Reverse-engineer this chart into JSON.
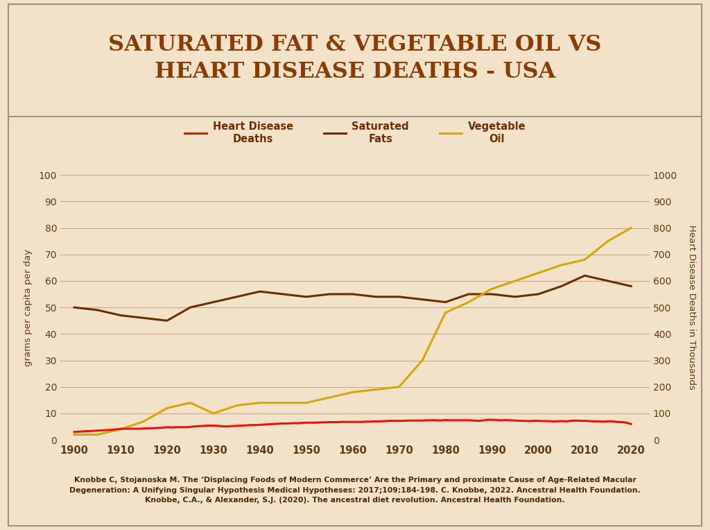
{
  "title_line1": "SATURATED FAT & VEGETABLE OIL VS",
  "title_line2": "HEART DISEASE DEATHS - USA",
  "title_color": "#8B3A00",
  "bg_color_top": "#C4AE8E",
  "bg_color_plot": "#F2E2CA",
  "border_color": "#A09080",
  "left_ylabel": "grams per capita per day",
  "right_ylabel": "Heart Disease Deaths in Thousands",
  "citation": "Knobbe C, Stojanoska M. The ‘Displacing Foods of Modern Commerce’ Are the Primary and proximate Cause of Age-Related Macular\nDegeneration: A Unifying Singular Hypothesis Medical Hypotheses: 2017;109:184-198. C. Knobbe, 2022. Ancestral Health Foundation.\nKnobbe, C.A., & Alexander, S.J. (2020). The ancestral diet revolution. Ancestral Health Foundation.",
  "heart_disease_color": "#E8140A",
  "sat_fat_color": "#6B2E00",
  "veg_oil_color": "#D4A800",
  "years_heart": [
    1900,
    1901,
    1902,
    1903,
    1904,
    1905,
    1906,
    1907,
    1908,
    1909,
    1910,
    1911,
    1912,
    1913,
    1914,
    1915,
    1916,
    1917,
    1918,
    1919,
    1920,
    1921,
    1922,
    1923,
    1924,
    1925,
    1926,
    1927,
    1928,
    1929,
    1930,
    1931,
    1932,
    1933,
    1934,
    1935,
    1936,
    1937,
    1938,
    1939,
    1940,
    1941,
    1942,
    1943,
    1944,
    1945,
    1946,
    1947,
    1948,
    1949,
    1950,
    1951,
    1952,
    1953,
    1954,
    1955,
    1956,
    1957,
    1958,
    1959,
    1960,
    1961,
    1962,
    1963,
    1964,
    1965,
    1966,
    1967,
    1968,
    1969,
    1970,
    1971,
    1972,
    1973,
    1974,
    1975,
    1976,
    1977,
    1978,
    1979,
    1980,
    1981,
    1982,
    1983,
    1984,
    1985,
    1986,
    1987,
    1988,
    1989,
    1990,
    1991,
    1992,
    1993,
    1994,
    1995,
    1996,
    1997,
    1998,
    1999,
    2000,
    2001,
    2002,
    2003,
    2004,
    2005,
    2006,
    2007,
    2008,
    2009,
    2010,
    2011,
    2012,
    2013,
    2014,
    2015,
    2016,
    2017,
    2018,
    2019,
    2020
  ],
  "heart_disease": [
    30,
    31,
    32,
    33,
    34,
    35,
    36,
    37,
    38,
    40,
    42,
    42,
    42,
    42,
    42,
    43,
    44,
    44,
    45,
    46,
    48,
    47,
    48,
    48,
    48,
    49,
    51,
    52,
    53,
    54,
    54,
    53,
    51,
    51,
    52,
    53,
    54,
    55,
    56,
    56,
    57,
    58,
    59,
    60,
    61,
    62,
    62,
    63,
    63,
    64,
    65,
    65,
    65,
    66,
    66,
    67,
    67,
    67,
    68,
    68,
    68,
    68,
    68,
    69,
    69,
    70,
    70,
    71,
    72,
    72,
    72,
    72,
    73,
    73,
    73,
    73,
    74,
    74,
    74,
    73,
    75,
    74,
    74,
    74,
    74,
    74,
    73,
    72,
    73,
    76,
    76,
    75,
    74,
    75,
    74,
    73,
    72,
    72,
    71,
    72,
    72,
    71,
    71,
    70,
    70,
    71,
    70,
    72,
    73,
    72,
    72,
    71,
    70,
    70,
    69,
    70,
    70,
    68,
    67,
    65,
    60
  ],
  "years_sat_fat": [
    1900,
    1905,
    1910,
    1915,
    1920,
    1925,
    1930,
    1935,
    1940,
    1945,
    1950,
    1955,
    1960,
    1965,
    1970,
    1975,
    1980,
    1985,
    1990,
    1995,
    2000,
    2005,
    2010,
    2015,
    2020
  ],
  "sat_fat": [
    50,
    49,
    47,
    46,
    45,
    50,
    52,
    54,
    56,
    55,
    54,
    55,
    55,
    54,
    54,
    53,
    52,
    55,
    55,
    54,
    55,
    58,
    62,
    60,
    58
  ],
  "years_veg_oil": [
    1900,
    1905,
    1910,
    1915,
    1920,
    1925,
    1930,
    1935,
    1940,
    1945,
    1950,
    1955,
    1960,
    1965,
    1970,
    1975,
    1980,
    1985,
    1990,
    1995,
    2000,
    2005,
    2010,
    2015,
    2020
  ],
  "veg_oil": [
    2,
    2,
    4,
    7,
    12,
    14,
    10,
    13,
    14,
    14,
    14,
    16,
    18,
    19,
    20,
    30,
    48,
    52,
    57,
    60,
    63,
    66,
    68,
    75,
    80
  ],
  "ylim_left": [
    0,
    100
  ],
  "ylim_right": [
    0,
    1000
  ],
  "yticks_left": [
    0,
    10,
    20,
    30,
    40,
    50,
    60,
    70,
    80,
    90,
    100
  ],
  "yticks_right": [
    0,
    100,
    200,
    300,
    400,
    500,
    600,
    700,
    800,
    900,
    1000
  ],
  "xticks": [
    1900,
    1910,
    1920,
    1930,
    1940,
    1950,
    1960,
    1970,
    1980,
    1990,
    2000,
    2010,
    2020
  ],
  "line_width": 2.2
}
